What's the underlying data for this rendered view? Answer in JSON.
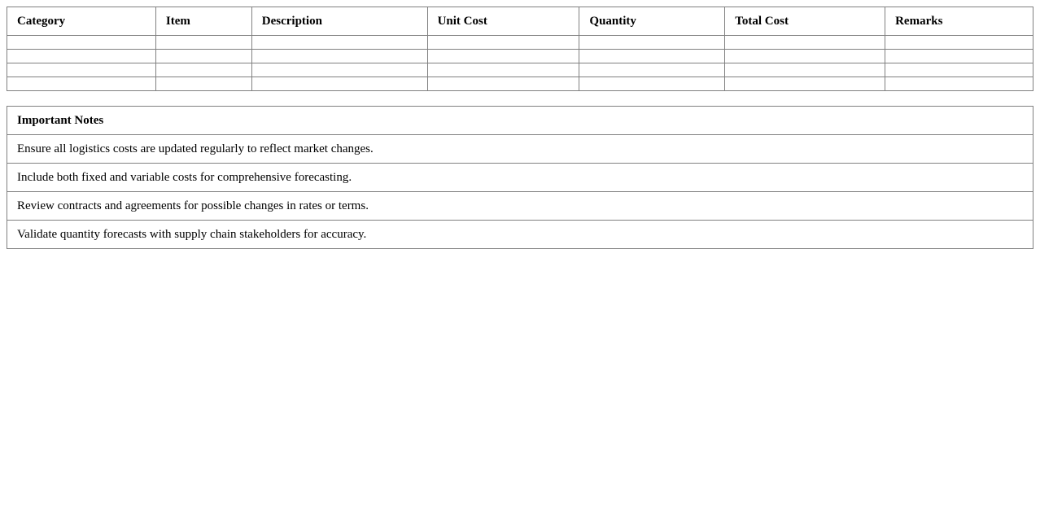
{
  "cost_table": {
    "headers": [
      "Category",
      "Item",
      "Description",
      "Unit Cost",
      "Quantity",
      "Total Cost",
      "Remarks"
    ],
    "empty_rows": 4
  },
  "notes": {
    "title": "Important Notes",
    "items": [
      "Ensure all logistics costs are updated regularly to reflect market changes.",
      "Include both fixed and variable costs for comprehensive forecasting.",
      "Review contracts and agreements for possible changes in rates or terms.",
      "Validate quantity forecasts with supply chain stakeholders for accuracy."
    ]
  }
}
